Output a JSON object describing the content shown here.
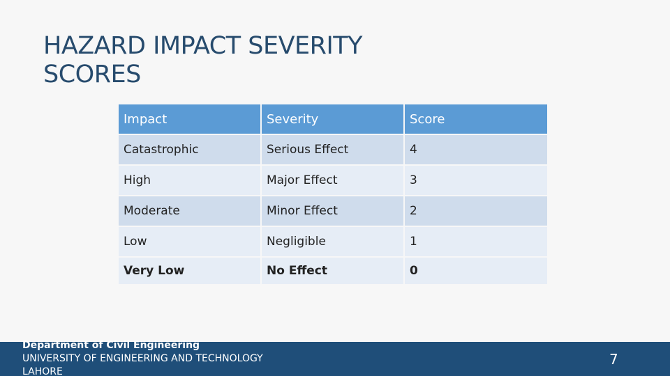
{
  "slide": {
    "title": "HAZARD IMPACT SEVERITY SCORES",
    "page_number": "7"
  },
  "table": {
    "headers": [
      "Impact",
      "Severity",
      "Score"
    ],
    "rows": [
      [
        "Catastrophic",
        "Serious Effect",
        "4"
      ],
      [
        "High",
        "Major Effect",
        "3"
      ],
      [
        "Moderate",
        "Minor Effect",
        "2"
      ],
      [
        "Low",
        "Negligible",
        "1"
      ],
      [
        "Very Low",
        "No Effect",
        "0"
      ]
    ]
  },
  "footer": {
    "line1": "Department of Civil Engineering",
    "line2": "UNIVERSITY OF ENGINEERING AND TECHNOLOGY",
    "line3": "LAHORE"
  },
  "colors": {
    "title": "#274b6d",
    "header_fill": "#5b9bd5",
    "row_fill_dark": "#cfdcec",
    "row_fill_light": "#e6edf6",
    "footer_bar": "#1f4e79"
  }
}
